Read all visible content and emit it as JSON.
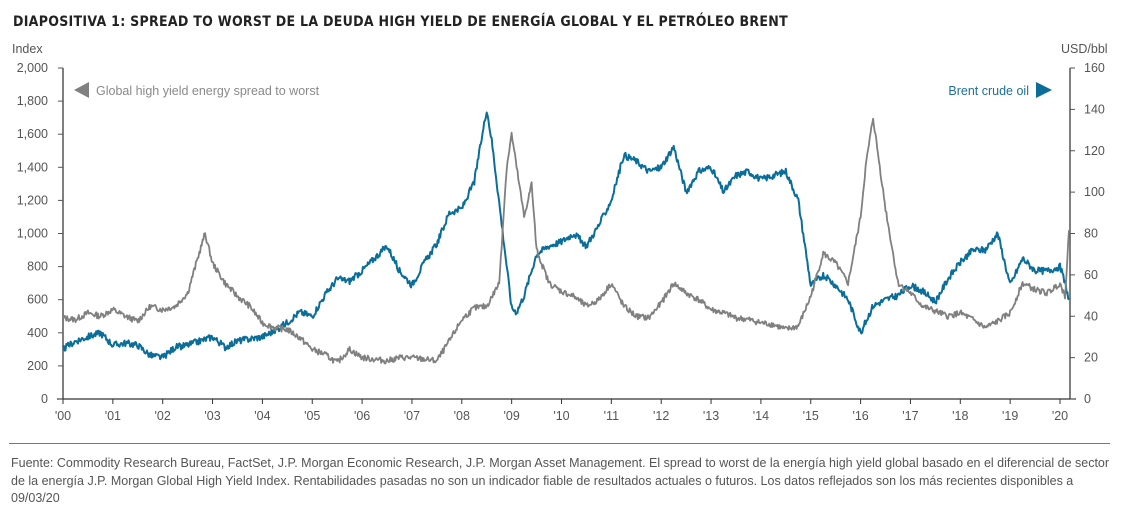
{
  "title": "DIAPOSITIVA 1: SPREAD TO WORST DE LA DEUDA HIGH YIELD DE ENERGÍA GLOBAL Y EL PETRÓLEO BRENT",
  "footnote": "Fuente: Commodity Research Bureau, FactSet, J.P. Morgan Economic Research, J.P. Morgan Asset Management. El spread to worst de la energía high yield global basado en el diferencial de sector de la energía J.P. Morgan Global High Yield Index. Rentabilidades pasadas no son un indicador fiable de resultados actuales o futuros. Los datos reflejados son los más recientes disponibles a 09/03/20",
  "chart_data": {
    "type": "line",
    "title": "DIAPOSITIVA 1: SPREAD TO WORST DE LA DEUDA HIGH YIELD DE ENERGÍA GLOBAL Y EL PETRÓLEO BRENT",
    "xlabel": "",
    "ylabel_left": "Index",
    "ylabel_right": "USD/bbl",
    "xlim": [
      2000.0,
      2020.2
    ],
    "ylim_left": [
      0,
      2000
    ],
    "ylim_right": [
      0,
      160
    ],
    "yticks_left": [
      "0",
      "200",
      "400",
      "600",
      "800",
      "1,000",
      "1,200",
      "1,400",
      "1,600",
      "1,800",
      "2,000"
    ],
    "yticks_right": [
      "0",
      "20",
      "40",
      "60",
      "80",
      "100",
      "120",
      "140",
      "160"
    ],
    "xticks": [
      "'00",
      "'01",
      "'02",
      "'03",
      "'04",
      "'05",
      "'06",
      "'07",
      "'08",
      "'09",
      "'10",
      "'11",
      "'12",
      "'13",
      "'14",
      "'15",
      "'16",
      "'17",
      "'18",
      "'19",
      "'20"
    ],
    "grid": false,
    "legend": [
      {
        "label": "Global high yield energy spread to worst",
        "axis": "left",
        "placement": "top-left",
        "marker": "left-arrow"
      },
      {
        "label": "Brent crude oil",
        "axis": "right",
        "placement": "top-right",
        "marker": "right-arrow"
      }
    ],
    "colors": {
      "spread": "#808080",
      "brent": "#0a6e99",
      "axis": "#555555"
    },
    "series": [
      {
        "name": "Global high yield energy spread to worst",
        "axis": "left",
        "x": [
          2000.0,
          2000.25,
          2000.5,
          2000.75,
          2001.0,
          2001.25,
          2001.5,
          2001.75,
          2002.0,
          2002.25,
          2002.5,
          2002.75,
          2002.85,
          2003.0,
          2003.25,
          2003.5,
          2003.75,
          2004.0,
          2004.25,
          2004.5,
          2004.75,
          2005.0,
          2005.25,
          2005.5,
          2005.75,
          2006.0,
          2006.25,
          2006.5,
          2006.75,
          2007.0,
          2007.25,
          2007.5,
          2007.75,
          2008.0,
          2008.25,
          2008.5,
          2008.75,
          2008.9,
          2009.0,
          2009.1,
          2009.25,
          2009.4,
          2009.5,
          2009.75,
          2010.0,
          2010.25,
          2010.5,
          2010.75,
          2011.0,
          2011.25,
          2011.5,
          2011.75,
          2012.0,
          2012.25,
          2012.5,
          2012.75,
          2013.0,
          2013.25,
          2013.5,
          2013.75,
          2014.0,
          2014.25,
          2014.5,
          2014.75,
          2015.0,
          2015.25,
          2015.5,
          2015.75,
          2016.0,
          2016.1,
          2016.25,
          2016.5,
          2016.75,
          2017.0,
          2017.25,
          2017.5,
          2017.75,
          2018.0,
          2018.25,
          2018.5,
          2018.75,
          2019.0,
          2019.25,
          2019.5,
          2019.75,
          2020.0,
          2020.1,
          2020.18
        ],
        "values": [
          490,
          480,
          520,
          500,
          540,
          500,
          470,
          560,
          540,
          560,
          640,
          900,
          1000,
          820,
          700,
          620,
          560,
          460,
          430,
          420,
          370,
          300,
          270,
          220,
          300,
          250,
          240,
          230,
          250,
          250,
          240,
          230,
          350,
          480,
          550,
          560,
          700,
          1400,
          1600,
          1400,
          1100,
          1300,
          900,
          700,
          650,
          620,
          560,
          600,
          700,
          560,
          500,
          490,
          580,
          700,
          640,
          600,
          540,
          520,
          490,
          480,
          460,
          450,
          420,
          440,
          620,
          880,
          820,
          700,
          1100,
          1400,
          1700,
          1150,
          700,
          640,
          560,
          530,
          500,
          520,
          480,
          430,
          470,
          520,
          700,
          660,
          640,
          700,
          620,
          1020
        ]
      },
      {
        "name": "Brent crude oil",
        "axis": "right",
        "x": [
          2000.0,
          2000.25,
          2000.5,
          2000.75,
          2001.0,
          2001.25,
          2001.5,
          2001.75,
          2002.0,
          2002.25,
          2002.5,
          2002.75,
          2003.0,
          2003.25,
          2003.5,
          2003.75,
          2004.0,
          2004.25,
          2004.5,
          2004.75,
          2005.0,
          2005.25,
          2005.5,
          2005.75,
          2006.0,
          2006.25,
          2006.5,
          2006.75,
          2007.0,
          2007.25,
          2007.5,
          2007.75,
          2008.0,
          2008.25,
          2008.5,
          2008.6,
          2008.75,
          2009.0,
          2009.1,
          2009.25,
          2009.5,
          2009.75,
          2010.0,
          2010.25,
          2010.5,
          2010.75,
          2011.0,
          2011.25,
          2011.5,
          2011.75,
          2012.0,
          2012.25,
          2012.5,
          2012.75,
          2013.0,
          2013.25,
          2013.5,
          2013.75,
          2014.0,
          2014.25,
          2014.5,
          2014.75,
          2015.0,
          2015.25,
          2015.5,
          2015.75,
          2016.0,
          2016.25,
          2016.5,
          2016.75,
          2017.0,
          2017.25,
          2017.5,
          2017.75,
          2018.0,
          2018.25,
          2018.5,
          2018.75,
          2019.0,
          2019.25,
          2019.5,
          2019.75,
          2020.0,
          2020.1,
          2020.18
        ],
        "values": [
          24,
          28,
          30,
          32,
          26,
          27,
          26,
          21,
          20,
          25,
          26,
          28,
          30,
          25,
          28,
          29,
          30,
          33,
          37,
          42,
          40,
          50,
          58,
          57,
          62,
          68,
          74,
          62,
          55,
          66,
          75,
          90,
          92,
          105,
          140,
          125,
          95,
          44,
          42,
          50,
          70,
          74,
          76,
          80,
          74,
          84,
          96,
          118,
          115,
          110,
          112,
          122,
          100,
          110,
          112,
          100,
          108,
          110,
          106,
          108,
          110,
          96,
          55,
          60,
          55,
          48,
          32,
          45,
          48,
          50,
          55,
          52,
          47,
          58,
          66,
          72,
          72,
          80,
          55,
          68,
          62,
          62,
          64,
          56,
          48
        ]
      }
    ]
  }
}
